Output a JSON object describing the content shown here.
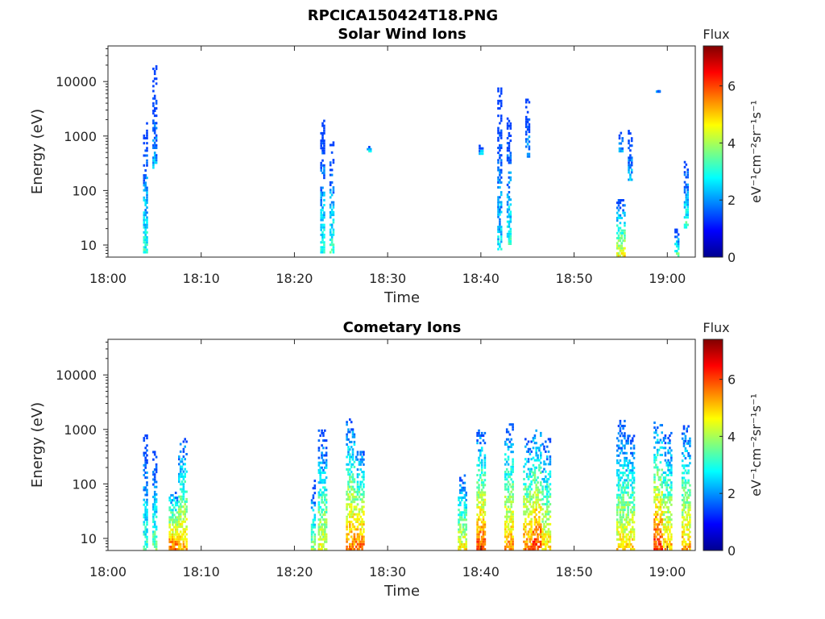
{
  "figure": {
    "title": "RPCICA150424T18.PNG"
  },
  "chart_data": [
    {
      "type": "heatmap",
      "title": "Solar Wind Ions",
      "xlabel": "Time",
      "ylabel": "Energy (eV)",
      "yscale": "log",
      "xlim": [
        "18:00",
        "19:03"
      ],
      "ylim": [
        6,
        45000
      ],
      "xticks": [
        "18:00",
        "18:10",
        "18:20",
        "18:30",
        "18:40",
        "18:50",
        "19:00"
      ],
      "yticks": [
        "10",
        "100",
        "1000",
        "10000"
      ],
      "colorbar": {
        "label": "Flux",
        "units": "eV⁻¹cm⁻²sr⁻¹s⁻¹",
        "ticks": [
          "0",
          "2",
          "4",
          "6"
        ],
        "range": [
          0,
          7.4
        ],
        "colormap": "jet"
      },
      "clusters": [
        {
          "t": "18:04",
          "e_min": 7,
          "e_max": 2000,
          "flux": 3.0
        },
        {
          "t": "18:05",
          "e_min": 250,
          "e_max": 20000,
          "flux": 2.2
        },
        {
          "t": "18:23",
          "e_min": 7,
          "e_max": 2000,
          "flux": 3.0
        },
        {
          "t": "18:24",
          "e_min": 7,
          "e_max": 800,
          "flux": 3.2
        },
        {
          "t": "18:28",
          "e_min": 500,
          "e_max": 650,
          "flux": 2.5
        },
        {
          "t": "18:40",
          "e_min": 450,
          "e_max": 700,
          "flux": 2.5
        },
        {
          "t": "18:42",
          "e_min": 8,
          "e_max": 7800,
          "flux": 2.6
        },
        {
          "t": "18:43",
          "e_min": 10,
          "e_max": 2200,
          "flux": 3.0
        },
        {
          "t": "18:45",
          "e_min": 400,
          "e_max": 5400,
          "flux": 2.2
        },
        {
          "t": "18:55",
          "e_min": 500,
          "e_max": 1200,
          "flux": 2.2
        },
        {
          "t": "18:55",
          "e_min": 6,
          "e_max": 70,
          "flux": 4.6
        },
        {
          "t": "18:56",
          "e_min": 150,
          "e_max": 1300,
          "flux": 2.3
        },
        {
          "t": "18:59",
          "e_min": 6200,
          "e_max": 6400,
          "flux": 2.0
        },
        {
          "t": "19:01",
          "e_min": 6,
          "e_max": 20,
          "flux": 3.6
        },
        {
          "t": "19:02",
          "e_min": 20,
          "e_max": 350,
          "flux": 3.3
        }
      ]
    },
    {
      "type": "heatmap",
      "title": "Cometary Ions",
      "xlabel": "Time",
      "ylabel": "Energy (eV)",
      "yscale": "log",
      "xlim": [
        "18:00",
        "19:03"
      ],
      "ylim": [
        6,
        45000
      ],
      "xticks": [
        "18:00",
        "18:10",
        "18:20",
        "18:30",
        "18:40",
        "18:50",
        "19:00"
      ],
      "yticks": [
        "10",
        "100",
        "1000",
        "10000"
      ],
      "colorbar": {
        "label": "Flux",
        "units": "eV⁻¹cm⁻²sr⁻¹s⁻¹",
        "ticks": [
          "0",
          "2",
          "4",
          "6"
        ],
        "range": [
          0,
          7.4
        ],
        "colormap": "jet"
      },
      "clusters": [
        {
          "t": "18:04",
          "e_min": 6,
          "e_max": 900,
          "flux": 3.2
        },
        {
          "t": "18:05",
          "e_min": 6,
          "e_max": 450,
          "flux": 3.5
        },
        {
          "t": "18:07",
          "e_min": 6,
          "e_max": 80,
          "flux": 5.8
        },
        {
          "t": "18:08",
          "e_min": 6,
          "e_max": 700,
          "flux": 5.2
        },
        {
          "t": "18:22",
          "e_min": 6,
          "e_max": 120,
          "flux": 3.8
        },
        {
          "t": "18:23",
          "e_min": 6,
          "e_max": 1000,
          "flux": 4.5
        },
        {
          "t": "18:26",
          "e_min": 6,
          "e_max": 1600,
          "flux": 5.6
        },
        {
          "t": "18:27",
          "e_min": 6,
          "e_max": 450,
          "flux": 5.8
        },
        {
          "t": "18:38",
          "e_min": 6,
          "e_max": 150,
          "flux": 4.8
        },
        {
          "t": "18:40",
          "e_min": 6,
          "e_max": 1000,
          "flux": 6.0
        },
        {
          "t": "18:43",
          "e_min": 6,
          "e_max": 1300,
          "flux": 5.4
        },
        {
          "t": "18:45",
          "e_min": 6,
          "e_max": 700,
          "flux": 5.6
        },
        {
          "t": "18:46",
          "e_min": 6,
          "e_max": 1000,
          "flux": 6.2
        },
        {
          "t": "18:47",
          "e_min": 6,
          "e_max": 700,
          "flux": 5.0
        },
        {
          "t": "18:55",
          "e_min": 6,
          "e_max": 1500,
          "flux": 4.8
        },
        {
          "t": "18:56",
          "e_min": 6,
          "e_max": 800,
          "flux": 5.0
        },
        {
          "t": "18:59",
          "e_min": 6,
          "e_max": 1400,
          "flux": 6.2
        },
        {
          "t": "19:00",
          "e_min": 6,
          "e_max": 900,
          "flux": 5.2
        },
        {
          "t": "19:02",
          "e_min": 6,
          "e_max": 1200,
          "flux": 5.2
        }
      ]
    }
  ]
}
